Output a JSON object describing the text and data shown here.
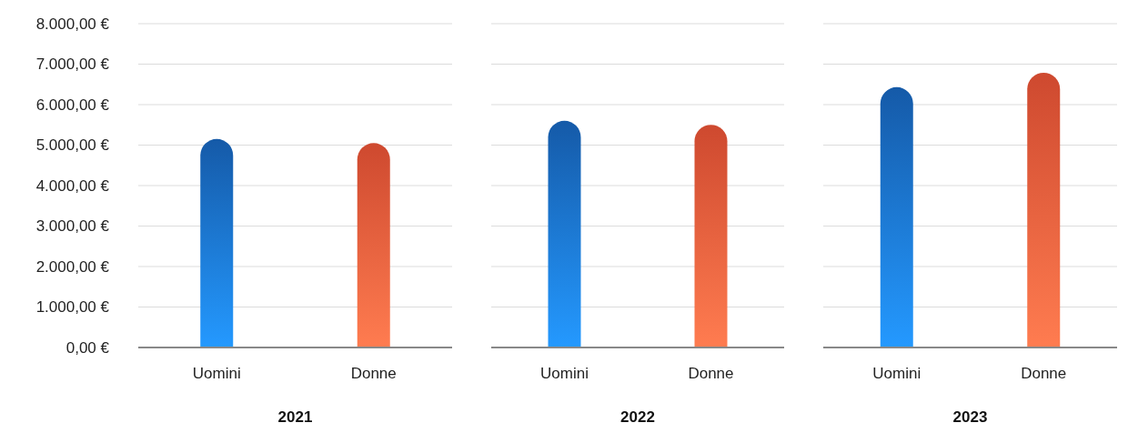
{
  "chart_data": [
    {
      "type": "bar",
      "xlabel": "2021",
      "categories": [
        "Uomini",
        "Donne"
      ],
      "values": [
        5150,
        5050
      ],
      "colors": [
        "#1a6fd0",
        "#ff5a3a"
      ],
      "ylim": [
        0,
        8000
      ],
      "yticks": [
        {
          "value": 0,
          "label": "0,00 €"
        },
        {
          "value": 1000,
          "label": "1.000,00 €"
        },
        {
          "value": 2000,
          "label": "2.000,00 €"
        },
        {
          "value": 3000,
          "label": "3.000,00 €"
        },
        {
          "value": 4000,
          "label": "4.000,00 €"
        },
        {
          "value": 5000,
          "label": "5.000,00 €"
        },
        {
          "value": 6000,
          "label": "6.000,00 €"
        },
        {
          "value": 7000,
          "label": "7.000,00 €"
        },
        {
          "value": 8000,
          "label": "8.000,00 €"
        }
      ],
      "grid": "y"
    },
    {
      "type": "bar",
      "xlabel": "2022",
      "categories": [
        "Uomini",
        "Donne"
      ],
      "values": [
        5600,
        5500
      ],
      "colors": [
        "#1a6fd0",
        "#ff5a3a"
      ],
      "ylim": [
        0,
        8000
      ],
      "yticks": [
        {
          "value": 0,
          "label": null
        },
        {
          "value": 1000,
          "label": null
        },
        {
          "value": 2000,
          "label": null
        },
        {
          "value": 3000,
          "label": null
        },
        {
          "value": 4000,
          "label": null
        },
        {
          "value": 5000,
          "label": null
        },
        {
          "value": 6000,
          "label": null
        },
        {
          "value": 7000,
          "label": null
        },
        {
          "value": 8000,
          "label": null
        }
      ],
      "grid": "y",
      "tick_labels": "x"
    },
    {
      "type": "bar",
      "xlabel": "2023",
      "categories": [
        "Uomini",
        "Donne"
      ],
      "values": [
        6430,
        6790
      ],
      "colors": [
        "#1a6fd0",
        "#ff5a3a"
      ],
      "ylim": [
        0,
        8000
      ],
      "yticks": [
        {
          "value": 0,
          "label": null
        },
        {
          "value": 1000,
          "label": null
        },
        {
          "value": 2000,
          "label": null
        },
        {
          "value": 3000,
          "label": null
        },
        {
          "value": 4000,
          "label": null
        },
        {
          "value": 5000,
          "label": null
        },
        {
          "value": 6000,
          "label": null
        },
        {
          "value": 7000,
          "label": null
        },
        {
          "value": 8000,
          "label": null
        }
      ],
      "grid": "y",
      "tick_labels": "x"
    }
  ]
}
